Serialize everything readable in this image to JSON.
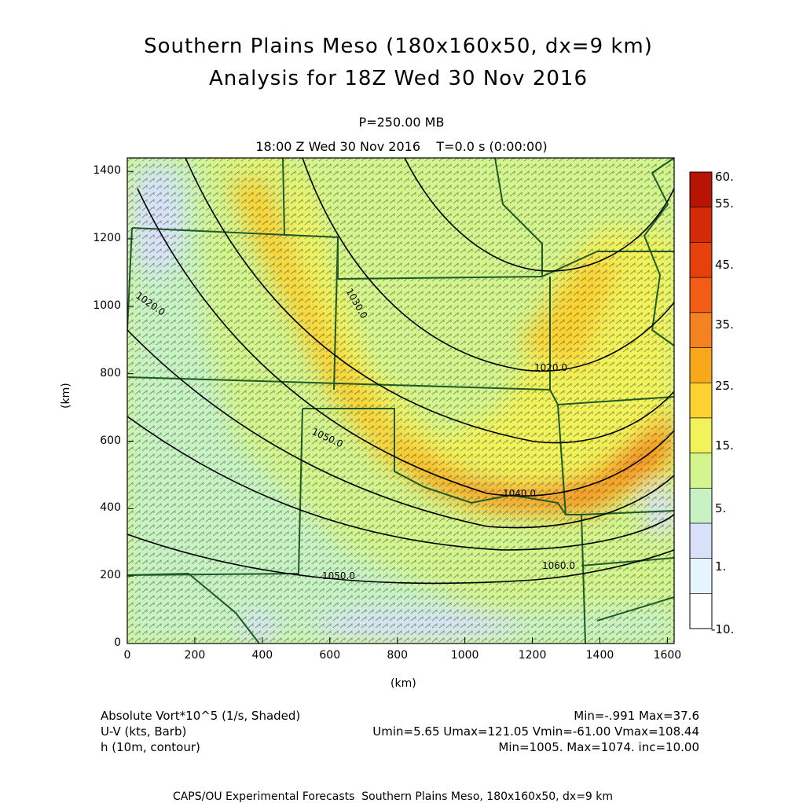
{
  "title": {
    "line1": "Southern Plains Meso (180x160x50, dx=9 km)",
    "line2": "Analysis for 18Z Wed 30 Nov 2016"
  },
  "subtitle": {
    "level": "P=250.00 MB",
    "time": "18:00 Z Wed 30 Nov 2016    T=0.0 s (0:00:00)"
  },
  "axes": {
    "xlabel": "(km)",
    "ylabel": "(km)",
    "xlim": [
      0,
      1620
    ],
    "ylim": [
      0,
      1440
    ],
    "xticks": [
      "0",
      "200",
      "400",
      "600",
      "800",
      "1000",
      "1200",
      "1400",
      "1600"
    ],
    "yticks": [
      "0",
      "200",
      "400",
      "600",
      "800",
      "1000",
      "1200",
      "1400"
    ]
  },
  "colorbar": {
    "labels": [
      "60.",
      "55.",
      "45.",
      "35.",
      "25.",
      "15.",
      "5.",
      "1.",
      "-10."
    ],
    "colors": [
      "#ffffff",
      "#e6f5fb",
      "#d8e0fa",
      "#c8f2c4",
      "#d4f48e",
      "#f2f25a",
      "#fbd232",
      "#f9a81c",
      "#f58220",
      "#f25c14",
      "#e8400c",
      "#d42a08",
      "#b81404"
    ]
  },
  "contour_labels": [
    "1020.0",
    "1030.0",
    "1020.0",
    "1050.0",
    "1040.0",
    "1050.0",
    "1060.0",
    "1060.0"
  ],
  "footer": {
    "field1": "Absolute Vort*10^5 (1/s, Shaded)",
    "field1_stats": "Min=-.991 Max=37.6",
    "field2": "U-V (kts, Barb)",
    "field2_stats": "Umin=5.65 Umax=121.05 Vmin=-61.00 Vmax=108.44",
    "field3": "h (10m, contour)",
    "field3_stats": "Min=1005. Max=1074. inc=10.00",
    "credit": "CAPS/OU Experimental Forecasts  Southern Plains Meso, 180x160x50, dx=9 km"
  }
}
